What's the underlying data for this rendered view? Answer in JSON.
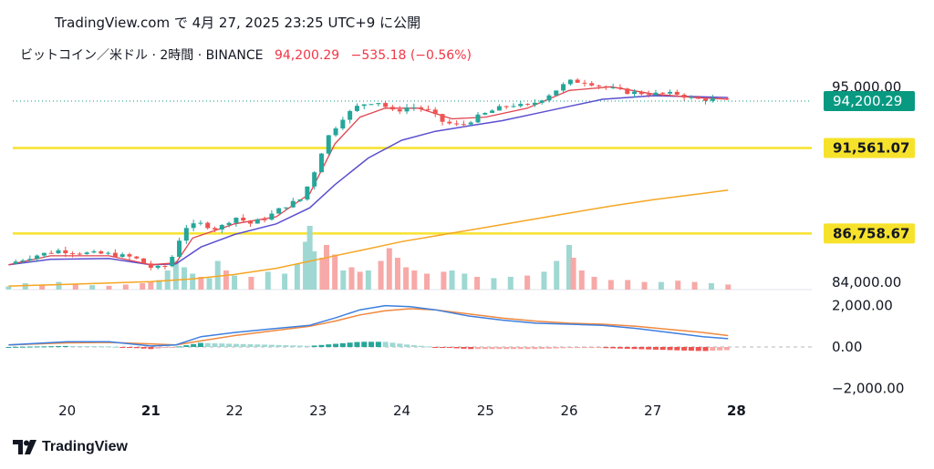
{
  "header": {
    "published": "TradingView.com で 4月 27, 2025 23:25 UTC+9 に公開"
  },
  "symbol": {
    "name": "ビットコイン／米ドル · 2時間 · BINANCE",
    "price": "94,200.29",
    "change": "−535.18 (−0.56%)"
  },
  "footer": {
    "brand": "TradingView"
  },
  "colors": {
    "up": "#26a69a",
    "down": "#ef5350",
    "up_vol": "#9fd8d2",
    "down_vol": "#f7a9a7",
    "ema_fast": "#e0434f",
    "ema_mid": "#5b4fcf",
    "ema_slow": "#f5a623",
    "hline": "#f7e22b",
    "macd": "#3d7fe0",
    "signal": "#f0883e",
    "price_tag": "#089981"
  },
  "chart_data": {
    "type": "candlestick",
    "timeframe": "2時間",
    "x_tick_labels": [
      "20",
      "21",
      "22",
      "23",
      "24",
      "25",
      "26",
      "27",
      "28"
    ],
    "price_axis": {
      "labels": [
        "95,000.00",
        "84,000.00"
      ],
      "ticks": [
        95000,
        84000
      ],
      "range": [
        83500,
        96400
      ]
    },
    "current_price": {
      "value": 94200.29,
      "label": "94,200.29"
    },
    "horizontal_lines": [
      {
        "value": 91561.07,
        "label": "91,561.07"
      },
      {
        "value": 86758.67,
        "label": "86,758.67"
      }
    ],
    "close_path": [
      [
        19.3,
        85050
      ],
      [
        19.6,
        85500
      ],
      [
        19.9,
        85800
      ],
      [
        20.2,
        85650
      ],
      [
        20.5,
        85600
      ],
      [
        20.8,
        85400
      ],
      [
        21.0,
        84850
      ],
      [
        21.15,
        84800
      ],
      [
        21.25,
        85400
      ],
      [
        21.4,
        87100
      ],
      [
        21.6,
        87300
      ],
      [
        21.8,
        87000
      ],
      [
        22.0,
        87700
      ],
      [
        22.2,
        87300
      ],
      [
        22.4,
        87700
      ],
      [
        22.6,
        88300
      ],
      [
        22.8,
        88700
      ],
      [
        22.95,
        90200
      ],
      [
        23.1,
        92100
      ],
      [
        23.3,
        93300
      ],
      [
        23.5,
        94000
      ],
      [
        23.7,
        94200
      ],
      [
        23.9,
        93600
      ],
      [
        24.1,
        93900
      ],
      [
        24.3,
        93700
      ],
      [
        24.5,
        93000
      ],
      [
        24.7,
        92800
      ],
      [
        24.9,
        93300
      ],
      [
        25.1,
        93700
      ],
      [
        25.3,
        94000
      ],
      [
        25.5,
        93900
      ],
      [
        25.7,
        94400
      ],
      [
        25.9,
        95000
      ],
      [
        26.0,
        95300
      ],
      [
        26.2,
        95300
      ],
      [
        26.4,
        95000
      ],
      [
        26.7,
        94700
      ],
      [
        27.0,
        94600
      ],
      [
        27.3,
        94600
      ],
      [
        27.5,
        94300
      ],
      [
        27.7,
        94300
      ],
      [
        27.9,
        94200
      ]
    ],
    "ema_fast_path": [
      [
        19.3,
        85000
      ],
      [
        19.8,
        85500
      ],
      [
        20.5,
        85500
      ],
      [
        21.0,
        85000
      ],
      [
        21.3,
        85100
      ],
      [
        21.5,
        86500
      ],
      [
        22.0,
        87300
      ],
      [
        22.5,
        87700
      ],
      [
        22.9,
        89000
      ],
      [
        23.2,
        91800
      ],
      [
        23.5,
        93300
      ],
      [
        23.8,
        93800
      ],
      [
        24.2,
        93800
      ],
      [
        24.6,
        93200
      ],
      [
        25.0,
        93300
      ],
      [
        25.5,
        93800
      ],
      [
        26.0,
        94800
      ],
      [
        26.5,
        95000
      ],
      [
        27.0,
        94600
      ],
      [
        27.5,
        94400
      ],
      [
        27.9,
        94300
      ]
    ],
    "ema_mid_path": [
      [
        19.3,
        85000
      ],
      [
        19.8,
        85300
      ],
      [
        20.5,
        85350
      ],
      [
        21.0,
        85000
      ],
      [
        21.3,
        85050
      ],
      [
        21.6,
        86000
      ],
      [
        22.0,
        86700
      ],
      [
        22.5,
        87300
      ],
      [
        22.9,
        88200
      ],
      [
        23.2,
        89500
      ],
      [
        23.6,
        91000
      ],
      [
        24.0,
        92000
      ],
      [
        24.4,
        92500
      ],
      [
        24.8,
        92800
      ],
      [
        25.2,
        93100
      ],
      [
        25.6,
        93500
      ],
      [
        26.0,
        93900
      ],
      [
        26.4,
        94300
      ],
      [
        27.0,
        94500
      ],
      [
        27.5,
        94450
      ],
      [
        27.9,
        94400
      ]
    ],
    "ema_slow_path": [
      [
        19.3,
        83800
      ],
      [
        20.0,
        83900
      ],
      [
        21.0,
        84050
      ],
      [
        21.5,
        84200
      ],
      [
        22.0,
        84450
      ],
      [
        22.5,
        84800
      ],
      [
        23.0,
        85300
      ],
      [
        23.5,
        85800
      ],
      [
        24.0,
        86300
      ],
      [
        24.5,
        86700
      ],
      [
        25.0,
        87100
      ],
      [
        25.5,
        87500
      ],
      [
        26.0,
        87900
      ],
      [
        26.5,
        88300
      ],
      [
        27.0,
        88650
      ],
      [
        27.5,
        88950
      ],
      [
        27.9,
        89200
      ]
    ],
    "volume_bars": [
      [
        19.3,
        0.05,
        1
      ],
      [
        19.5,
        0.1,
        1
      ],
      [
        19.7,
        0.08,
        0
      ],
      [
        19.9,
        0.12,
        1
      ],
      [
        20.1,
        0.09,
        0
      ],
      [
        20.3,
        0.07,
        1
      ],
      [
        20.5,
        0.06,
        0
      ],
      [
        20.7,
        0.08,
        0
      ],
      [
        20.9,
        0.1,
        0
      ],
      [
        21.0,
        0.12,
        0
      ],
      [
        21.1,
        0.15,
        1
      ],
      [
        21.2,
        0.3,
        1
      ],
      [
        21.3,
        0.45,
        1
      ],
      [
        21.4,
        0.35,
        1
      ],
      [
        21.5,
        0.25,
        1
      ],
      [
        21.6,
        0.2,
        0
      ],
      [
        21.7,
        0.18,
        1
      ],
      [
        21.8,
        0.45,
        1
      ],
      [
        21.9,
        0.3,
        0
      ],
      [
        22.0,
        0.22,
        1
      ],
      [
        22.2,
        0.2,
        0
      ],
      [
        22.4,
        0.28,
        1
      ],
      [
        22.6,
        0.25,
        1
      ],
      [
        22.75,
        0.4,
        1
      ],
      [
        22.85,
        0.75,
        1
      ],
      [
        22.9,
        1.0,
        1
      ],
      [
        22.95,
        0.6,
        1
      ],
      [
        23.05,
        0.5,
        0
      ],
      [
        23.1,
        0.7,
        0
      ],
      [
        23.2,
        0.55,
        0
      ],
      [
        23.3,
        0.3,
        1
      ],
      [
        23.4,
        0.35,
        0
      ],
      [
        23.5,
        0.28,
        0
      ],
      [
        23.6,
        0.3,
        1
      ],
      [
        23.75,
        0.45,
        0
      ],
      [
        23.85,
        0.65,
        0
      ],
      [
        23.95,
        0.5,
        0
      ],
      [
        24.05,
        0.35,
        0
      ],
      [
        24.15,
        0.3,
        0
      ],
      [
        24.3,
        0.25,
        0
      ],
      [
        24.5,
        0.28,
        0
      ],
      [
        24.6,
        0.3,
        1
      ],
      [
        24.75,
        0.25,
        1
      ],
      [
        24.9,
        0.2,
        0
      ],
      [
        25.1,
        0.18,
        1
      ],
      [
        25.3,
        0.2,
        1
      ],
      [
        25.5,
        0.22,
        0
      ],
      [
        25.7,
        0.28,
        1
      ],
      [
        25.85,
        0.45,
        1
      ],
      [
        26.0,
        0.7,
        1
      ],
      [
        26.05,
        0.5,
        0
      ],
      [
        26.15,
        0.3,
        0
      ],
      [
        26.3,
        0.2,
        0
      ],
      [
        26.5,
        0.15,
        0
      ],
      [
        26.7,
        0.15,
        0
      ],
      [
        26.9,
        0.12,
        0
      ],
      [
        27.1,
        0.12,
        1
      ],
      [
        27.3,
        0.14,
        0
      ],
      [
        27.5,
        0.12,
        0
      ],
      [
        27.7,
        0.1,
        1
      ],
      [
        27.9,
        0.08,
        0
      ]
    ],
    "macd": {
      "axis_labels": [
        "2,000.00",
        "0.00",
        "−2,000.00"
      ],
      "ticks": [
        2000,
        0,
        -2000
      ],
      "range": [
        -2600,
        2600
      ],
      "macd_line": [
        [
          19.3,
          100
        ],
        [
          20.0,
          250
        ],
        [
          20.5,
          250
        ],
        [
          21.0,
          50
        ],
        [
          21.3,
          100
        ],
        [
          21.6,
          500
        ],
        [
          22.0,
          700
        ],
        [
          22.5,
          900
        ],
        [
          22.9,
          1050
        ],
        [
          23.2,
          1400
        ],
        [
          23.5,
          1800
        ],
        [
          23.8,
          2000
        ],
        [
          24.1,
          1950
        ],
        [
          24.4,
          1800
        ],
        [
          24.8,
          1500
        ],
        [
          25.2,
          1300
        ],
        [
          25.6,
          1150
        ],
        [
          26.0,
          1100
        ],
        [
          26.4,
          1050
        ],
        [
          26.8,
          900
        ],
        [
          27.2,
          700
        ],
        [
          27.6,
          500
        ],
        [
          27.9,
          400
        ]
      ],
      "signal_line": [
        [
          19.3,
          100
        ],
        [
          20.0,
          200
        ],
        [
          20.5,
          220
        ],
        [
          21.0,
          150
        ],
        [
          21.3,
          100
        ],
        [
          21.6,
          300
        ],
        [
          22.0,
          550
        ],
        [
          22.5,
          800
        ],
        [
          22.9,
          1000
        ],
        [
          23.2,
          1250
        ],
        [
          23.5,
          1550
        ],
        [
          23.8,
          1750
        ],
        [
          24.1,
          1850
        ],
        [
          24.4,
          1800
        ],
        [
          24.8,
          1600
        ],
        [
          25.2,
          1400
        ],
        [
          25.6,
          1250
        ],
        [
          26.0,
          1150
        ],
        [
          26.4,
          1100
        ],
        [
          26.8,
          1000
        ],
        [
          27.2,
          850
        ],
        [
          27.6,
          700
        ],
        [
          27.9,
          550
        ]
      ]
    }
  }
}
